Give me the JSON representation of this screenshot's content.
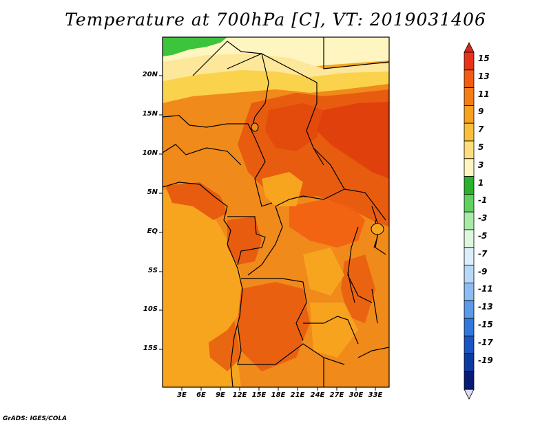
{
  "title": "Temperature at 700hPa [C], VT: 2019031406",
  "credit": "GrADS: IGES/COLA",
  "map": {
    "lat_labels": [
      "20N",
      "15N",
      "10N",
      "5N",
      "EQ",
      "5S",
      "10S",
      "15S"
    ],
    "lon_labels": [
      "3E",
      "6E",
      "9E",
      "12E",
      "15E",
      "18E",
      "21E",
      "24E",
      "27E",
      "30E",
      "33E"
    ],
    "colors": {
      "ocean_warm": "#f7a51e",
      "land_mid": "#f08a1a",
      "land_hot": "#e85c10",
      "hot_core": "#e0400c",
      "light_yellow": "#fde79a",
      "pale_yellow": "#fff5c0",
      "yellow": "#fbd24c",
      "green": "#3cc43c",
      "border": "#000000"
    }
  },
  "colorbar": {
    "labels": [
      "15",
      "13",
      "11",
      "9",
      "7",
      "5",
      "3",
      "1",
      "-1",
      "-3",
      "-5",
      "-7",
      "-9",
      "-11",
      "-13",
      "-15",
      "-17",
      "-19"
    ],
    "colors": [
      "#e8331a",
      "#f25d12",
      "#f47d14",
      "#f7a11e",
      "#fabf3a",
      "#fdde7c",
      "#fff5c0",
      "#29b32a",
      "#5fd15f",
      "#a8eaa8",
      "#ddf7dd",
      "#dceefc",
      "#b8d8f8",
      "#8cbcf2",
      "#5a9ae8",
      "#3277dc",
      "#1a55c4",
      "#0d3aa0",
      "#061a78"
    ],
    "arrow_top_color": "#d8271a",
    "arrow_bottom_color": "#dcdcf2"
  }
}
